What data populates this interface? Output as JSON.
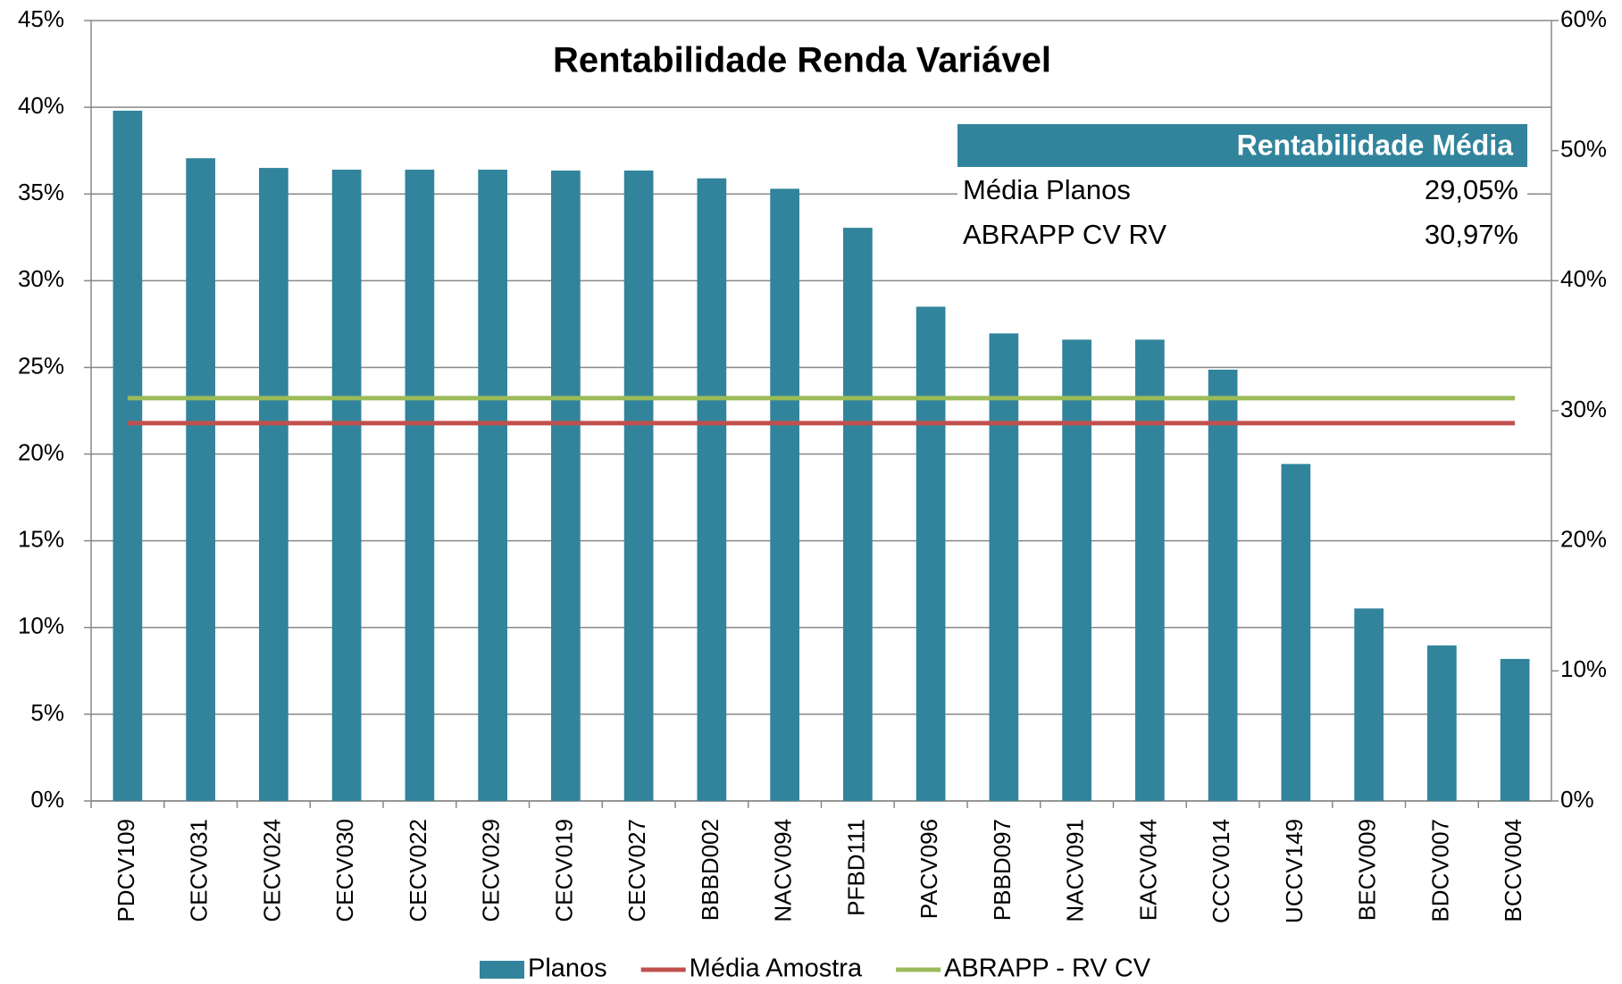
{
  "chart_data": {
    "type": "bar",
    "title": "Rentabilidade Renda Variável",
    "categories": [
      "PDCV109",
      "CECV031",
      "CECV024",
      "CECV030",
      "CECV022",
      "CECV029",
      "CECV019",
      "CECV027",
      "BBBD002",
      "NACV094",
      "PFBD111",
      "PACV096",
      "PBBD097",
      "NACV091",
      "EACV044",
      "CCCV014",
      "UCCV149",
      "BECV009",
      "BDCV007",
      "BCCV004"
    ],
    "series": [
      {
        "name": "Planos",
        "color": "#31849b",
        "values": [
          39.8,
          37.06,
          36.5,
          36.4,
          36.4,
          36.4,
          36.35,
          36.35,
          35.9,
          35.3,
          33.05,
          28.5,
          26.96,
          26.6,
          26.6,
          24.87,
          19.43,
          11.1,
          8.97,
          8.19
        ]
      },
      {
        "name": "Média Amostra",
        "color": "#c0504d",
        "axis": "y2",
        "values": [
          29.05,
          29.05,
          29.05,
          29.05,
          29.05,
          29.05,
          29.05,
          29.05,
          29.05,
          29.05,
          29.05,
          29.05,
          29.05,
          29.05,
          29.05,
          29.05,
          29.05,
          29.05,
          29.05,
          29.05
        ]
      },
      {
        "name": "ABRAPP - RV CV",
        "color": "#9bbb59",
        "axis": "y2",
        "values": [
          30.97,
          30.97,
          30.97,
          30.97,
          30.97,
          30.97,
          30.97,
          30.97,
          30.97,
          30.97,
          30.97,
          30.97,
          30.97,
          30.97,
          30.97,
          30.97,
          30.97,
          30.97,
          30.97,
          30.97
        ]
      }
    ],
    "ylim": [
      0,
      45
    ],
    "yticks": [
      {
        "value": 0,
        "label": "0%"
      },
      {
        "value": 5,
        "label": "5%"
      },
      {
        "value": 10,
        "label": "10%"
      },
      {
        "value": 15,
        "label": "15%"
      },
      {
        "value": 20,
        "label": "20%"
      },
      {
        "value": 25,
        "label": "25%"
      },
      {
        "value": 30,
        "label": "30%"
      },
      {
        "value": 35,
        "label": "35%"
      },
      {
        "value": 40,
        "label": "40%"
      },
      {
        "value": 45,
        "label": "45%"
      }
    ],
    "y2lim": [
      0,
      60
    ],
    "y2ticks": [
      {
        "value": 0,
        "label": "0%"
      },
      {
        "value": 10,
        "label": "10%"
      },
      {
        "value": 20,
        "label": "20%"
      },
      {
        "value": 30,
        "label": "30%"
      },
      {
        "value": 40,
        "label": "40%"
      },
      {
        "value": 50,
        "label": "50%"
      },
      {
        "value": 60,
        "label": "60%"
      }
    ],
    "grid": true,
    "legend": "bottom",
    "table": {
      "header": "Rentabilidade Média",
      "rows": [
        [
          "Média Planos",
          "29,05%"
        ],
        [
          "ABRAPP CV RV",
          "30,97%"
        ]
      ]
    }
  }
}
